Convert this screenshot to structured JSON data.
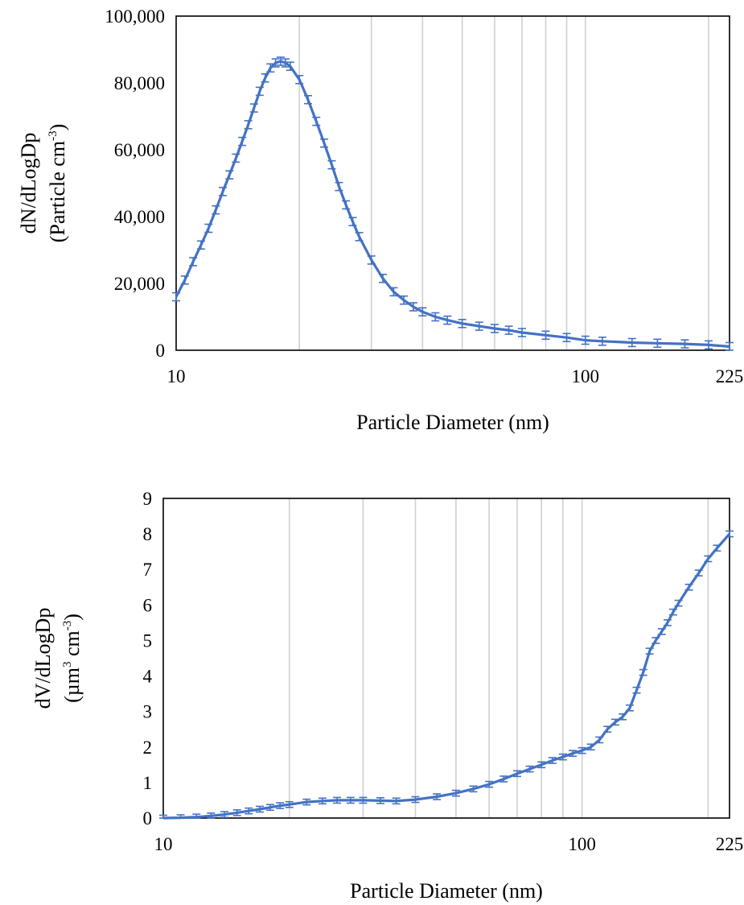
{
  "chart_data": [
    {
      "type": "line",
      "x_scale": "log",
      "xlabel": "Particle Diameter (nm)",
      "ylabel_line1": "dN/dLogDp",
      "ylabel_line2_prefix": "(Particle cm",
      "ylabel_line2_sup": "-3",
      "ylabel_line2_suffix": ")",
      "xlim": [
        10,
        225
      ],
      "ylim": [
        0,
        100000
      ],
      "x_ticks": [
        {
          "value": 10,
          "label": "10"
        },
        {
          "value": 100,
          "label": "100"
        },
        {
          "value": 225,
          "label": "225"
        }
      ],
      "y_ticks": [
        {
          "value": 0,
          "label": "0"
        },
        {
          "value": 20000,
          "label": "20,000"
        },
        {
          "value": 40000,
          "label": "40,000"
        },
        {
          "value": 60000,
          "label": "60,000"
        },
        {
          "value": 80000,
          "label": "80,000"
        },
        {
          "value": 100000,
          "label": "100,000"
        }
      ],
      "gridlines_x": [
        20,
        30,
        40,
        50,
        60,
        70,
        80,
        90,
        100,
        200
      ],
      "error_bars": true,
      "series": [
        {
          "color": "#4472C4",
          "x": [
            10,
            10.5,
            11,
            11.5,
            12,
            12.5,
            13,
            13.5,
            14,
            14.5,
            15,
            15.5,
            16,
            16.5,
            17,
            17.5,
            18,
            18.5,
            19,
            20,
            21,
            22,
            23,
            24,
            25,
            26,
            27,
            28,
            30,
            32,
            34,
            36,
            38,
            40,
            43,
            46,
            50,
            55,
            60,
            65,
            70,
            80,
            90,
            100,
            110,
            130,
            150,
            175,
            200,
            225
          ],
          "y": [
            16000,
            21000,
            26500,
            31500,
            36500,
            42000,
            47500,
            52500,
            57500,
            62500,
            67500,
            72500,
            77500,
            81500,
            84500,
            86000,
            86500,
            86000,
            85000,
            81000,
            75000,
            68500,
            62000,
            55500,
            49000,
            43500,
            38500,
            34000,
            27000,
            21500,
            17500,
            15000,
            13000,
            11500,
            10000,
            9000,
            8000,
            7200,
            6500,
            6000,
            5300,
            4500,
            3800,
            3000,
            2700,
            2300,
            2100,
            1900,
            1600,
            1100
          ],
          "err": 1200
        }
      ]
    },
    {
      "type": "line",
      "x_scale": "log",
      "xlabel": "Particle Diameter (nm)",
      "ylabel_line1": "dV/dLogDp",
      "ylabel_line2_prefix": "(µm",
      "ylabel_line2_sup": "3",
      "ylabel_line2_mid": " cm",
      "ylabel_line2_sup2": "-3",
      "ylabel_line2_suffix": ")",
      "xlim": [
        10,
        225
      ],
      "ylim": [
        0,
        9
      ],
      "x_ticks": [
        {
          "value": 10,
          "label": "10"
        },
        {
          "value": 100,
          "label": "100"
        },
        {
          "value": 225,
          "label": "225"
        }
      ],
      "y_ticks": [
        {
          "value": 0,
          "label": "0"
        },
        {
          "value": 1,
          "label": "1"
        },
        {
          "value": 2,
          "label": "2"
        },
        {
          "value": 3,
          "label": "3"
        },
        {
          "value": 4,
          "label": "4"
        },
        {
          "value": 5,
          "label": "5"
        },
        {
          "value": 6,
          "label": "6"
        },
        {
          "value": 7,
          "label": "7"
        },
        {
          "value": 8,
          "label": "8"
        },
        {
          "value": 9,
          "label": "9"
        }
      ],
      "gridlines_x": [
        20,
        30,
        40,
        50,
        60,
        70,
        80,
        90,
        100,
        200
      ],
      "error_bars": true,
      "series": [
        {
          "color": "#4472C4",
          "x": [
            10,
            11,
            12,
            13,
            14,
            15,
            16,
            17,
            18,
            19,
            20,
            22,
            24,
            26,
            28,
            30,
            33,
            36,
            40,
            45,
            50,
            55,
            60,
            65,
            70,
            75,
            80,
            85,
            90,
            95,
            100,
            105,
            110,
            115,
            120,
            125,
            130,
            135,
            140,
            145,
            150,
            155,
            160,
            165,
            170,
            180,
            190,
            200,
            210,
            225
          ],
          "y": [
            0.0,
            0.01,
            0.03,
            0.06,
            0.1,
            0.15,
            0.2,
            0.25,
            0.3,
            0.35,
            0.38,
            0.45,
            0.48,
            0.5,
            0.5,
            0.5,
            0.49,
            0.48,
            0.52,
            0.6,
            0.7,
            0.82,
            0.95,
            1.1,
            1.25,
            1.38,
            1.5,
            1.62,
            1.72,
            1.82,
            1.9,
            2.0,
            2.2,
            2.5,
            2.7,
            2.85,
            3.1,
            3.6,
            4.1,
            4.7,
            5.0,
            5.25,
            5.5,
            5.8,
            6.05,
            6.5,
            6.9,
            7.3,
            7.6,
            8.0
          ],
          "err": 0.08
        }
      ]
    }
  ]
}
